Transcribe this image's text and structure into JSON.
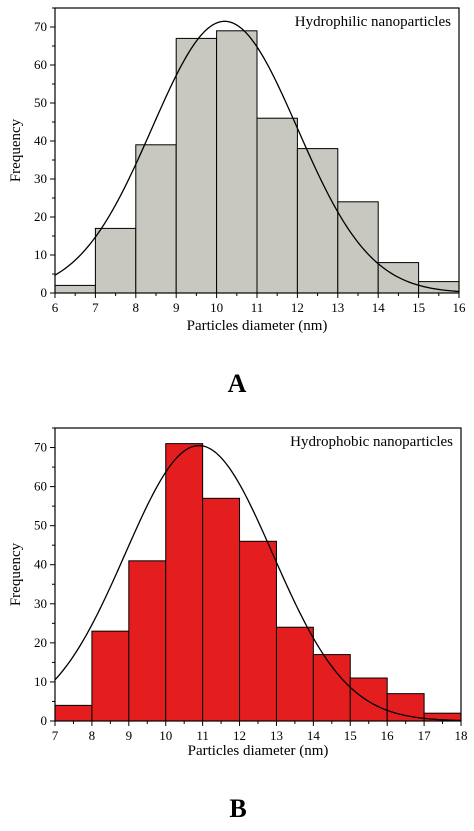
{
  "chart_data": [
    {
      "type": "bar",
      "panel_label": "A",
      "annotation": "Hydrophilic nanoparticles",
      "xlabel": "Particles diameter (nm)",
      "ylabel": "Frequency",
      "xlim": [
        6,
        16
      ],
      "ylim": [
        0,
        75
      ],
      "x_ticks": [
        6,
        7,
        8,
        9,
        10,
        11,
        12,
        13,
        14,
        15,
        16
      ],
      "y_ticks": [
        0,
        10,
        20,
        30,
        40,
        50,
        60,
        70
      ],
      "bin_edges": [
        6,
        7,
        8,
        9,
        10,
        11,
        12,
        13,
        14,
        15,
        16
      ],
      "values": [
        2,
        17,
        39,
        67,
        69,
        46,
        38,
        24,
        8,
        3
      ],
      "bar_color": "#c8c8c0",
      "fit_curve": {
        "type": "gaussian",
        "peak_x": 10.2,
        "peak_y": 71.5,
        "sigma": 1.8
      },
      "grid": false
    },
    {
      "type": "bar",
      "panel_label": "B",
      "annotation": "Hydrophobic nanoparticles",
      "xlabel": "Particles diameter (nm)",
      "ylabel": "Frequency",
      "xlim": [
        7,
        18
      ],
      "ylim": [
        0,
        75
      ],
      "x_ticks": [
        7,
        8,
        9,
        10,
        11,
        12,
        13,
        14,
        15,
        16,
        17,
        18
      ],
      "y_ticks": [
        0,
        10,
        20,
        30,
        40,
        50,
        60,
        70
      ],
      "bin_edges": [
        7,
        8,
        9,
        10,
        11,
        12,
        13,
        14,
        15,
        16,
        17,
        18
      ],
      "values": [
        4,
        23,
        41,
        71,
        57,
        46,
        24,
        17,
        11,
        7,
        2
      ],
      "bar_color": "#e41e1e",
      "fit_curve": {
        "type": "gaussian",
        "peak_x": 10.9,
        "peak_y": 70.5,
        "sigma": 2.0
      },
      "grid": false
    }
  ]
}
